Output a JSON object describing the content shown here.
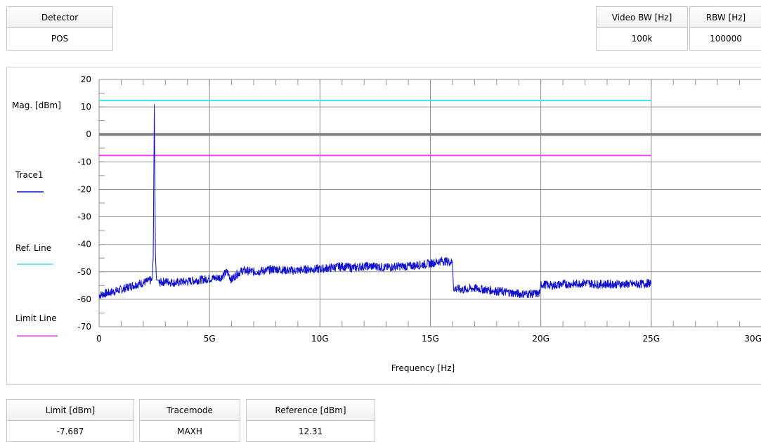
{
  "detector": {
    "label": "Detector",
    "value": "POS"
  },
  "video_bw": {
    "label": "Video BW [Hz]",
    "value": "100k"
  },
  "rbw": {
    "label": "RBW [Hz]",
    "value": "100000"
  },
  "limit": {
    "label": "Limit [dBm]",
    "value": "-7.687"
  },
  "tracemode": {
    "label": "Tracemode",
    "value": "MAXH"
  },
  "reference": {
    "label": "Reference [dBm]",
    "value": "12.31"
  },
  "legend": {
    "trace1": "Trace1",
    "ref_line": "Ref. Line",
    "limit_line": "Limit Line"
  },
  "colors": {
    "trace": "#1010d0",
    "ref_line": "#40e0f0",
    "limit_line": "#f040f0",
    "zero_line": "#808080",
    "grid": "#909090"
  },
  "chart_data": {
    "type": "line",
    "xlabel": "Frequency [Hz]",
    "ylabel": "Mag. [dBm]",
    "xlim": [
      0,
      30000000000
    ],
    "ylim": [
      -70,
      20
    ],
    "x_ticks": [
      0,
      5000000000,
      10000000000,
      15000000000,
      20000000000,
      25000000000,
      30000000000
    ],
    "x_tick_labels": [
      "0",
      "5G",
      "10G",
      "15G",
      "20G",
      "25G",
      "30G"
    ],
    "y_ticks": [
      20,
      10,
      0,
      -10,
      -20,
      -30,
      -40,
      -50,
      -60,
      -70
    ],
    "y_tick_labels": [
      "20",
      "10",
      "0",
      "-10",
      "-20",
      "-30",
      "-40",
      "-50",
      "-60",
      "-70"
    ],
    "grid": true,
    "legend_position": "left",
    "ref_line": {
      "y": 12.31,
      "x_range": [
        0,
        25000000000
      ]
    },
    "limit_line": {
      "y": -7.687,
      "x_range": [
        0,
        25000000000
      ]
    },
    "zero_line": {
      "y": 0
    },
    "series": [
      {
        "name": "Trace1",
        "x": [
          0,
          500000000,
          1000000000,
          1500000000,
          2000000000,
          2400000000,
          2450000000,
          2500000000,
          2550000000,
          2600000000,
          2650000000,
          2700000000,
          3000000000,
          3500000000,
          4000000000,
          4500000000,
          5000000000,
          5500000000,
          5800000000,
          6000000000,
          6200000000,
          6500000000,
          7000000000,
          7500000000,
          8000000000,
          8500000000,
          9000000000,
          9500000000,
          10000000000,
          10500000000,
          11000000000,
          11500000000,
          12000000000,
          12500000000,
          13000000000,
          13500000000,
          14000000000,
          14500000000,
          15000000000,
          15500000000,
          16000000000,
          16050000000,
          16500000000,
          17000000000,
          17500000000,
          18000000000,
          18500000000,
          19000000000,
          19500000000,
          19950000000,
          20000000000,
          20500000000,
          21000000000,
          21500000000,
          22000000000,
          22500000000,
          23000000000,
          23500000000,
          24000000000,
          24500000000,
          25000000000
        ],
        "values": [
          -58.5,
          -57.5,
          -56.5,
          -55,
          -54,
          -53,
          -45,
          11,
          -44,
          -53,
          -53,
          -54,
          -53.5,
          -54,
          -53.5,
          -53,
          -52.5,
          -52,
          -50,
          -53,
          -51,
          -49.5,
          -50,
          -49.5,
          -49,
          -49.5,
          -49.5,
          -49,
          -49,
          -48.5,
          -48,
          -48.5,
          -48,
          -48,
          -48.5,
          -48,
          -48,
          -47.5,
          -47,
          -46,
          -46.5,
          -56,
          -56.5,
          -56,
          -56.5,
          -57,
          -57.5,
          -58,
          -58,
          -58,
          -54.5,
          -55,
          -54.5,
          -54.5,
          -54,
          -54.5,
          -54.5,
          -54.5,
          -54.5,
          -54.5,
          -54
        ]
      }
    ]
  }
}
